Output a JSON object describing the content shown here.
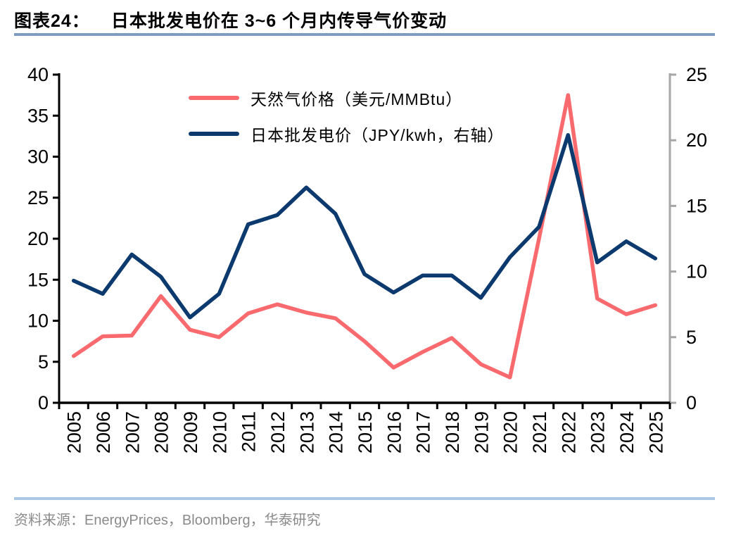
{
  "header": {
    "figure_label": "图表24：",
    "title": "日本批发电价在 3~6 个月内传导气价变动"
  },
  "legend": [
    {
      "label": "天然气价格（美元/MMBtu）",
      "color": "#F96A6E"
    },
    {
      "label": "日本批发电价（JPY/kwh，右轴）",
      "color": "#0C3A6E"
    }
  ],
  "chart_data": {
    "type": "line",
    "categories": [
      "2005",
      "2006",
      "2007",
      "2008",
      "2009",
      "2010",
      "2011",
      "2012",
      "2013",
      "2014",
      "2015",
      "2016",
      "2017",
      "2018",
      "2019",
      "2020",
      "2021",
      "2022",
      "2023",
      "2024",
      "2025"
    ],
    "series": [
      {
        "name": "天然气价格（美元/MMBtu）",
        "axis": "left",
        "color": "#F96A6E",
        "values": [
          5.7,
          8.1,
          8.2,
          13.0,
          8.9,
          8.0,
          10.9,
          12.0,
          11.0,
          10.3,
          7.5,
          4.3,
          6.2,
          7.9,
          4.7,
          3.1,
          20.0,
          37.5,
          12.7,
          10.8,
          11.9
        ]
      },
      {
        "name": "日本批发电价（JPY/kwh，右轴）",
        "axis": "right",
        "color": "#0C3A6E",
        "values": [
          9.3,
          8.3,
          11.3,
          9.6,
          6.5,
          8.3,
          13.6,
          14.3,
          16.4,
          14.4,
          9.8,
          8.4,
          9.7,
          9.7,
          8.0,
          11.1,
          13.4,
          20.4,
          10.7,
          12.3,
          11.0
        ]
      }
    ],
    "left_axis": {
      "min": 0,
      "max": 40,
      "step": 5
    },
    "right_axis": {
      "min": 0,
      "max": 25,
      "step": 5
    },
    "grid": false,
    "legend_position": "top-center"
  },
  "footer": {
    "source": "资料来源：EnergyPrices，Bloomberg，华泰研究"
  },
  "colors": {
    "title_rule": "#7d9cc0",
    "footer_rule": "#abc8e4",
    "left_axis": "#000000",
    "right_axis": "#a6a6a6",
    "tick_label": "#000000",
    "footer_text": "#8a8a8a"
  }
}
